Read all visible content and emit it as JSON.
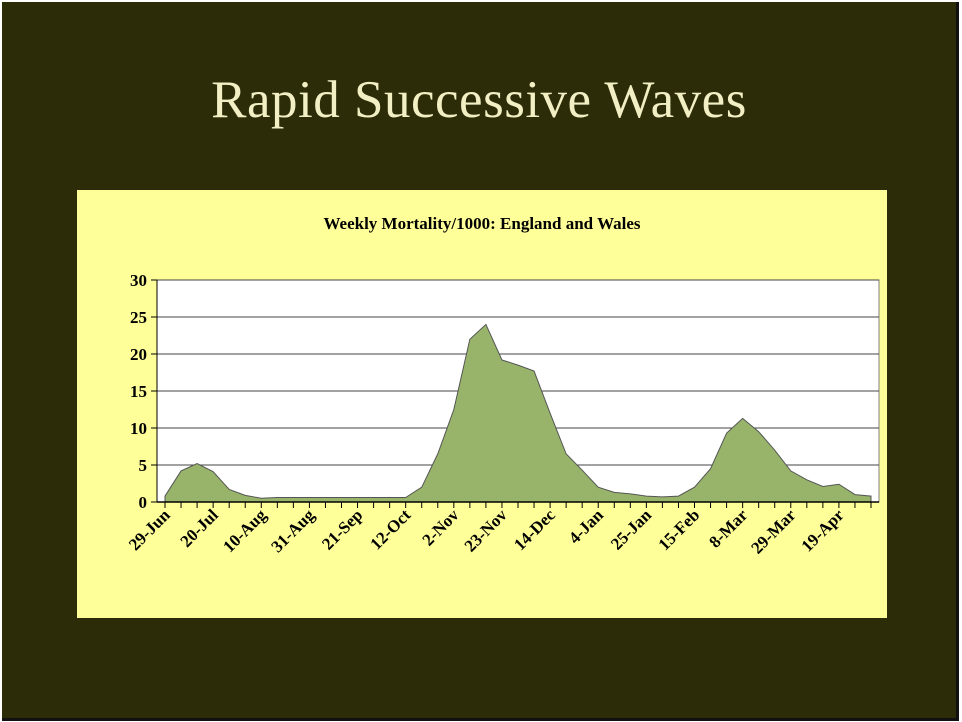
{
  "slide": {
    "title": "Rapid Successive Waves",
    "background_color": "#2c2d08",
    "title_color": "#f2efc4"
  },
  "chart_data": {
    "type": "area",
    "title": "Weekly Mortality/1000: England and Wales",
    "xlabel": "",
    "ylabel": "",
    "ylim": [
      0,
      30
    ],
    "yticks": [
      0,
      5,
      10,
      15,
      20,
      25,
      30
    ],
    "grid": true,
    "legend": "none",
    "fill_color": "#97b46a",
    "plot_background": "#ffffff",
    "chart_background": "#ffff99",
    "tick_labels": [
      "29-Jun",
      "20-Jul",
      "10-Aug",
      "31-Aug",
      "21-Sep",
      "12-Oct",
      "2-Nov",
      "23-Nov",
      "14-Dec",
      "4-Jan",
      "25-Jan",
      "15-Feb",
      "8-Mar",
      "29-Mar",
      "19-Apr"
    ],
    "values": [
      0.8,
      4.2,
      5.2,
      4.1,
      1.7,
      0.9,
      0.5,
      0.6,
      0.6,
      0.6,
      0.6,
      0.6,
      0.6,
      0.6,
      0.6,
      0.6,
      2.0,
      6.5,
      12.5,
      22.0,
      24.0,
      19.2,
      18.5,
      17.7,
      12.0,
      6.5,
      4.3,
      2.0,
      1.3,
      1.1,
      0.8,
      0.7,
      0.8,
      2.0,
      4.5,
      9.3,
      11.3,
      9.5,
      7.0,
      4.2,
      3.0,
      2.1,
      2.4,
      1.0,
      0.8
    ]
  }
}
